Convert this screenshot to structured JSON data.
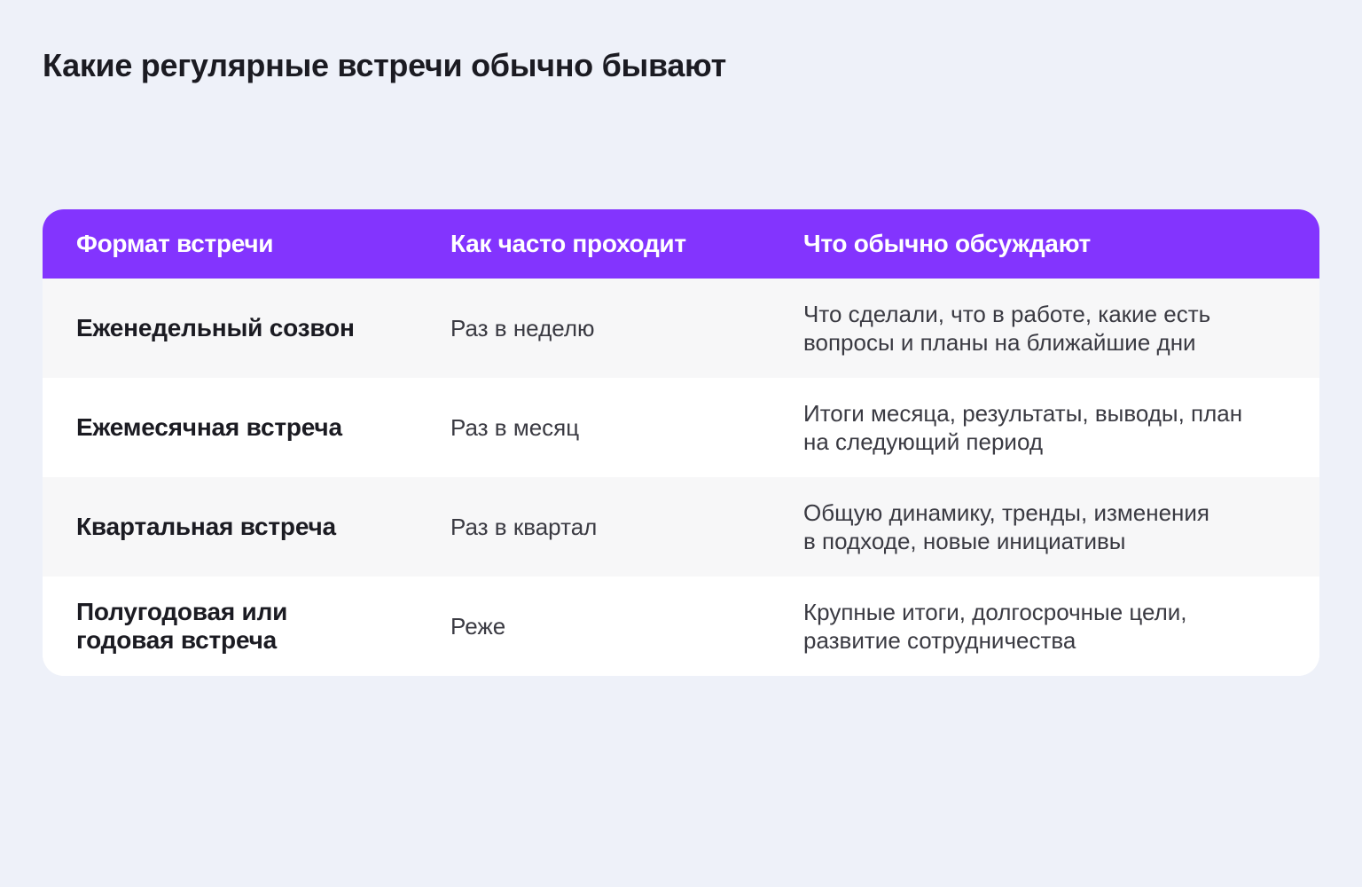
{
  "colors": {
    "page_background": "#eef1f9",
    "header_background": "#8334fe",
    "row_alt": "#f7f7f8",
    "row": "#ffffff"
  },
  "title": "Какие регулярные встречи обычно бывают",
  "table": {
    "headers": [
      "Формат встречи",
      "Как часто проходит",
      "Что обычно обсуждают"
    ],
    "rows": [
      {
        "format": "Еженедельный созвон",
        "frequency": "Раз в неделю",
        "topics_line1": "Что сделали, что в работе, какие есть",
        "topics_line2": "вопросы и планы на ближайшие дни"
      },
      {
        "format": "Ежемесячная встреча",
        "frequency": "Раз в месяц",
        "topics_line1": "Итоги месяца, результаты, выводы, план",
        "topics_line2": "на следующий период"
      },
      {
        "format": "Квартальная встреча",
        "frequency": "Раз в квартал",
        "topics_line1": "Общую динамику, тренды, изменения",
        "topics_line2": "в подходе, новые инициативы"
      },
      {
        "format_line1": "Полугодовая или",
        "format_line2": "годовая встреча",
        "frequency": "Реже",
        "topics_line1": "Крупные итоги, долгосрочные цели,",
        "topics_line2": "развитие сотрудничества"
      }
    ]
  }
}
